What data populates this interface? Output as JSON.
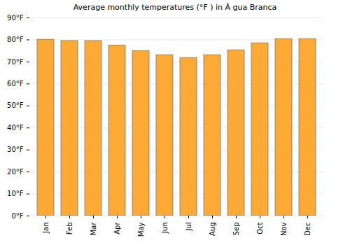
{
  "chart_data": {
    "type": "bar",
    "title": "Average monthly temperatures (°F ) in Ă gua Branca",
    "categories": [
      "Jan",
      "Feb",
      "Mar",
      "Apr",
      "May",
      "Jun",
      "Jul",
      "Aug",
      "Sep",
      "Oct",
      "Nov",
      "Dec"
    ],
    "values": [
      80.1,
      79.5,
      79.5,
      77.5,
      75.0,
      73.1,
      71.8,
      73.1,
      75.3,
      78.5,
      80.4,
      80.4
    ],
    "color": "#fca935",
    "ylim": [
      0,
      90
    ],
    "yticks": [
      {
        "value": 0,
        "label": "0°F"
      },
      {
        "value": 10,
        "label": "10°F"
      },
      {
        "value": 20,
        "label": "20°F"
      },
      {
        "value": 30,
        "label": "30°F"
      },
      {
        "value": 40,
        "label": "40°F"
      },
      {
        "value": 50,
        "label": "50°F"
      },
      {
        "value": 60,
        "label": "60°F"
      },
      {
        "value": 70,
        "label": "70°F"
      },
      {
        "value": 80,
        "label": "80°F"
      },
      {
        "value": 90,
        "label": "90°F"
      }
    ],
    "grid": true
  }
}
